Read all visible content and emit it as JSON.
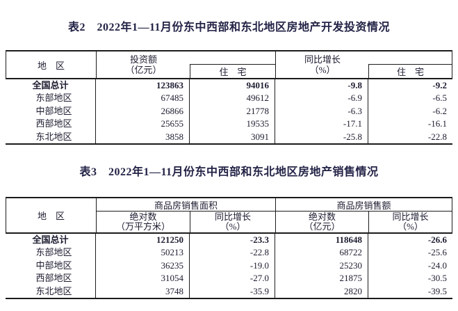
{
  "colors": {
    "title": "#232347",
    "text": "#1c1c30",
    "border": "#1b1b1b"
  },
  "table2": {
    "title": "表2　2022年1—11月份东中西部和东北地区房地产开发投资情况",
    "header": {
      "region": "地　区",
      "investment_line1": "投资额",
      "investment_line2": "（亿元）",
      "residential1": "住　宅",
      "yoy_line1": "同比增长",
      "yoy_line2": "（%）",
      "residential2": "住　宅"
    },
    "rows": [
      {
        "region": "全国总计",
        "investment": "123863",
        "residential": "94016",
        "yoy": "-9.8",
        "yoy_residential": "-9.2"
      },
      {
        "region": "东部地区",
        "investment": "67485",
        "residential": "49612",
        "yoy": "-6.9",
        "yoy_residential": "-6.5"
      },
      {
        "region": "中部地区",
        "investment": "26866",
        "residential": "21778",
        "yoy": "-6.3",
        "yoy_residential": "-6.2"
      },
      {
        "region": "西部地区",
        "investment": "25655",
        "residential": "19535",
        "yoy": "-17.1",
        "yoy_residential": "-16.1"
      },
      {
        "region": "东北地区",
        "investment": "3858",
        "residential": "3091",
        "yoy": "-25.8",
        "yoy_residential": "-22.8"
      }
    ]
  },
  "table3": {
    "title": "表3　2022年1—11月份东中西部和东北地区房地产销售情况",
    "header": {
      "region": "地　区",
      "group_area": "商品房销售面积",
      "group_amount": "商品房销售额",
      "abs_area_line1": "绝对数",
      "abs_area_line2": "（万平方米）",
      "yoy1_line1": "同比增长",
      "yoy1_line2": "（%）",
      "abs_amount_line1": "绝对数",
      "abs_amount_line2": "（亿元）",
      "yoy2_line1": "同比增长",
      "yoy2_line2": "（%）"
    },
    "rows": [
      {
        "region": "全国总计",
        "area": "121250",
        "area_yoy": "-23.3",
        "amount": "118648",
        "amount_yoy": "-26.6"
      },
      {
        "region": "东部地区",
        "area": "50213",
        "area_yoy": "-22.8",
        "amount": "68722",
        "amount_yoy": "-25.6"
      },
      {
        "region": "中部地区",
        "area": "36235",
        "area_yoy": "-19.0",
        "amount": "25230",
        "amount_yoy": "-24.0"
      },
      {
        "region": "西部地区",
        "area": "31054",
        "area_yoy": "-27.0",
        "amount": "21875",
        "amount_yoy": "-30.5"
      },
      {
        "region": "东北地区",
        "area": "3748",
        "area_yoy": "-35.9",
        "amount": "2820",
        "amount_yoy": "-39.5"
      }
    ]
  }
}
